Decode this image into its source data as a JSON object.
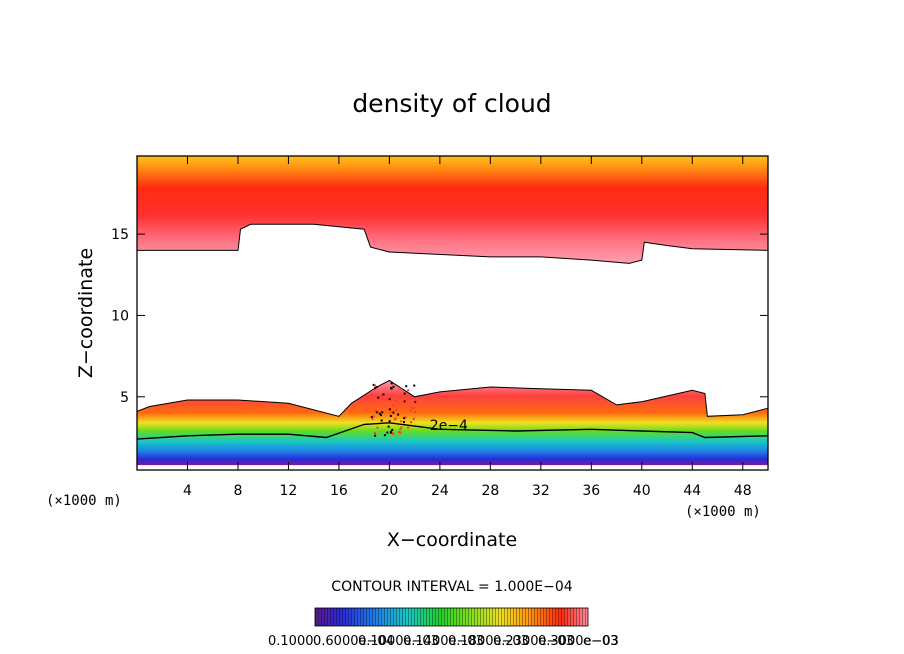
{
  "chart_data": {
    "type": "heatmap",
    "title": "density of cloud",
    "xlabel": "X−coordinate",
    "ylabel": "Z−coordinate",
    "x_unit_left": "(×1000 m)",
    "x_unit_right": "(×1000 m)",
    "xlim": [
      0,
      50
    ],
    "ylim": [
      0.5,
      19.8
    ],
    "x_ticks": [
      4,
      8,
      12,
      16,
      20,
      24,
      28,
      32,
      36,
      40,
      44,
      48
    ],
    "y_ticks": [
      5,
      10,
      15
    ],
    "contour_interval_text": "CONTOUR INTERVAL = 1.000E−04",
    "contour_label": "2e−4",
    "colorbar_labels": [
      "0.1000",
      "0.6000e−04",
      "0.1000e−03",
      "0.1400e−03",
      "0.1800e−03",
      "0.2300e−03",
      "0.3000e−03",
      "e−03"
    ],
    "colors": {
      "scale": [
        "#6a1a9a",
        "#2a2ad8",
        "#1f7fe6",
        "#18c8c8",
        "#22d22a",
        "#8de021",
        "#f0e020",
        "#ff9a10",
        "#ff2a10",
        "#ff8aa0"
      ]
    },
    "regions": {
      "upper_cloud_top_z": 19.8,
      "upper_cloud_base_profile": [
        [
          0,
          14.0
        ],
        [
          8,
          14.0
        ],
        [
          8.2,
          15.3
        ],
        [
          9,
          15.6
        ],
        [
          14,
          15.6
        ],
        [
          18,
          15.3
        ],
        [
          18.5,
          14.2
        ],
        [
          20,
          13.9
        ],
        [
          28,
          13.6
        ],
        [
          32,
          13.6
        ],
        [
          36,
          13.4
        ],
        [
          39,
          13.2
        ],
        [
          40,
          13.4
        ],
        [
          40.2,
          14.5
        ],
        [
          42,
          14.3
        ],
        [
          44,
          14.1
        ],
        [
          50,
          14.0
        ]
      ],
      "lower_cloud_top_profile": [
        [
          0,
          4.1
        ],
        [
          1,
          4.4
        ],
        [
          4,
          4.8
        ],
        [
          8,
          4.8
        ],
        [
          12,
          4.6
        ],
        [
          16,
          3.8
        ],
        [
          17,
          4.6
        ],
        [
          19,
          5.6
        ],
        [
          20,
          6.0
        ],
        [
          22,
          5.0
        ],
        [
          24,
          5.3
        ],
        [
          28,
          5.6
        ],
        [
          32,
          5.5
        ],
        [
          36,
          5.4
        ],
        [
          38,
          4.5
        ],
        [
          40,
          4.7
        ],
        [
          44,
          5.4
        ],
        [
          45,
          5.2
        ],
        [
          45.2,
          3.8
        ],
        [
          48,
          3.9
        ],
        [
          50,
          4.3
        ]
      ],
      "contour_2e4_profile": [
        [
          0,
          2.4
        ],
        [
          4,
          2.6
        ],
        [
          8,
          2.7
        ],
        [
          12,
          2.7
        ],
        [
          15,
          2.5
        ],
        [
          18,
          3.3
        ],
        [
          20,
          3.4
        ],
        [
          24,
          3.0
        ],
        [
          30,
          2.9
        ],
        [
          36,
          3.0
        ],
        [
          40,
          2.9
        ],
        [
          44,
          2.8
        ],
        [
          45,
          2.5
        ],
        [
          50,
          2.6
        ]
      ],
      "lower_cloud_base_z": 0.8
    }
  }
}
